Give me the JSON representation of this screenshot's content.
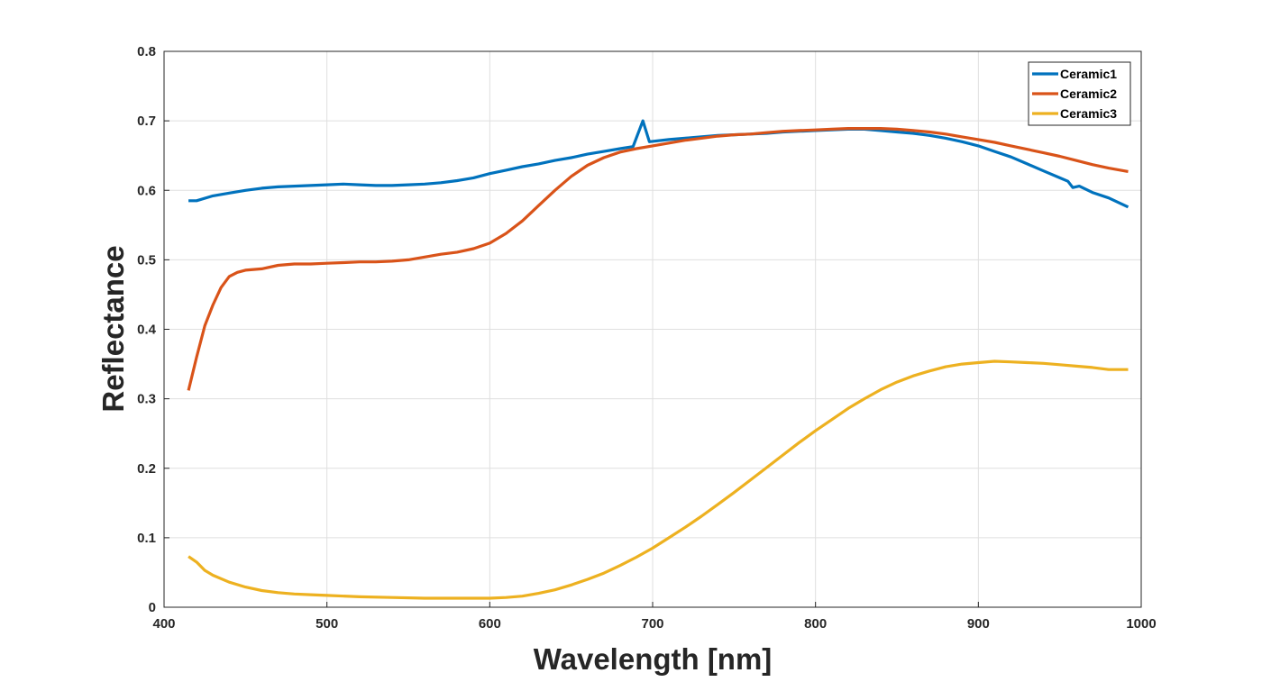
{
  "chart_data": {
    "type": "line",
    "title": "",
    "xlabel": "Wavelength [nm]",
    "ylabel": "Reflectance",
    "xlim": [
      400,
      1000
    ],
    "ylim": [
      0,
      0.8
    ],
    "xticks": [
      400,
      500,
      600,
      700,
      800,
      900,
      1000
    ],
    "xtick_labels": [
      "400",
      "500",
      "600",
      "700",
      "800",
      "900",
      "1000"
    ],
    "yticks": [
      0,
      0.1,
      0.2,
      0.3,
      0.4,
      0.5,
      0.6,
      0.7,
      0.8
    ],
    "ytick_labels": [
      "0",
      "0.1",
      "0.2",
      "0.3",
      "0.4",
      "0.5",
      "0.6",
      "0.7",
      "0.8"
    ],
    "grid": true,
    "legend_position": "top-right",
    "series": [
      {
        "name": "Ceramic1",
        "color": "#0072BD",
        "x": [
          415,
          420,
          430,
          440,
          450,
          460,
          470,
          480,
          490,
          500,
          510,
          520,
          530,
          540,
          550,
          560,
          570,
          580,
          590,
          600,
          610,
          620,
          630,
          640,
          650,
          660,
          670,
          680,
          688,
          694,
          698,
          710,
          720,
          730,
          740,
          750,
          760,
          770,
          780,
          790,
          800,
          810,
          820,
          830,
          840,
          850,
          860,
          870,
          880,
          890,
          900,
          910,
          920,
          930,
          940,
          950,
          955,
          958,
          962,
          970,
          980,
          992
        ],
        "y": [
          0.585,
          0.585,
          0.592,
          0.596,
          0.6,
          0.603,
          0.605,
          0.606,
          0.607,
          0.608,
          0.609,
          0.608,
          0.607,
          0.607,
          0.608,
          0.609,
          0.611,
          0.614,
          0.618,
          0.624,
          0.629,
          0.634,
          0.638,
          0.643,
          0.647,
          0.652,
          0.656,
          0.66,
          0.663,
          0.7,
          0.67,
          0.673,
          0.675,
          0.677,
          0.679,
          0.68,
          0.681,
          0.682,
          0.684,
          0.685,
          0.686,
          0.687,
          0.688,
          0.688,
          0.686,
          0.684,
          0.682,
          0.679,
          0.675,
          0.67,
          0.664,
          0.656,
          0.648,
          0.638,
          0.628,
          0.618,
          0.613,
          0.604,
          0.606,
          0.597,
          0.589,
          0.576
        ]
      },
      {
        "name": "Ceramic2",
        "color": "#D95319",
        "x": [
          415,
          420,
          425,
          430,
          435,
          440,
          445,
          450,
          460,
          470,
          480,
          490,
          500,
          510,
          520,
          530,
          540,
          550,
          560,
          570,
          580,
          590,
          600,
          610,
          620,
          630,
          640,
          650,
          660,
          670,
          680,
          690,
          700,
          710,
          720,
          730,
          740,
          750,
          760,
          770,
          780,
          790,
          800,
          810,
          820,
          830,
          840,
          850,
          860,
          870,
          880,
          890,
          900,
          910,
          920,
          930,
          940,
          950,
          960,
          970,
          980,
          992
        ],
        "y": [
          0.312,
          0.36,
          0.405,
          0.435,
          0.46,
          0.476,
          0.482,
          0.485,
          0.487,
          0.492,
          0.494,
          0.494,
          0.495,
          0.496,
          0.497,
          0.497,
          0.498,
          0.5,
          0.504,
          0.508,
          0.511,
          0.516,
          0.524,
          0.538,
          0.556,
          0.578,
          0.6,
          0.62,
          0.636,
          0.647,
          0.655,
          0.66,
          0.664,
          0.668,
          0.672,
          0.675,
          0.678,
          0.68,
          0.681,
          0.683,
          0.685,
          0.686,
          0.687,
          0.688,
          0.689,
          0.689,
          0.689,
          0.688,
          0.686,
          0.684,
          0.681,
          0.677,
          0.673,
          0.669,
          0.664,
          0.659,
          0.654,
          0.649,
          0.643,
          0.637,
          0.632,
          0.627
        ]
      },
      {
        "name": "Ceramic3",
        "color": "#EDB120",
        "x": [
          415,
          420,
          425,
          430,
          440,
          450,
          460,
          470,
          480,
          490,
          500,
          520,
          540,
          560,
          580,
          600,
          610,
          620,
          630,
          640,
          650,
          660,
          670,
          680,
          690,
          700,
          710,
          720,
          730,
          740,
          750,
          760,
          770,
          780,
          790,
          800,
          810,
          820,
          830,
          840,
          850,
          860,
          870,
          880,
          890,
          900,
          910,
          920,
          930,
          940,
          950,
          960,
          970,
          980,
          992
        ],
        "y": [
          0.073,
          0.065,
          0.053,
          0.046,
          0.036,
          0.029,
          0.024,
          0.021,
          0.019,
          0.018,
          0.017,
          0.015,
          0.014,
          0.013,
          0.013,
          0.013,
          0.014,
          0.016,
          0.02,
          0.025,
          0.032,
          0.04,
          0.049,
          0.06,
          0.072,
          0.085,
          0.1,
          0.115,
          0.131,
          0.148,
          0.165,
          0.183,
          0.201,
          0.219,
          0.237,
          0.254,
          0.27,
          0.286,
          0.3,
          0.313,
          0.324,
          0.333,
          0.34,
          0.346,
          0.35,
          0.352,
          0.354,
          0.353,
          0.352,
          0.351,
          0.349,
          0.347,
          0.345,
          0.342,
          0.342
        ]
      }
    ]
  }
}
